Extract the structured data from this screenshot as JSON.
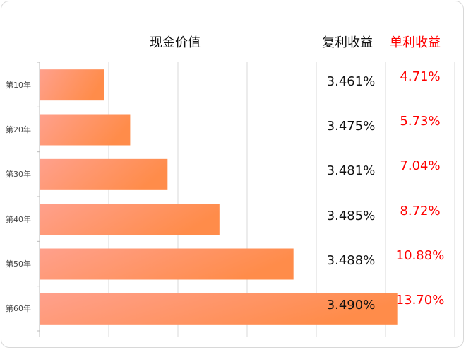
{
  "headers": {
    "cash_value": "现金价值",
    "compound": "复利收益",
    "simple": "单利收益"
  },
  "colors": {
    "bar_start": "#ffa08c",
    "bar_end": "#ff8c4a",
    "simple_text": "#ff0000",
    "compound_text": "#111111",
    "grid": "#d9d9d9"
  },
  "chart_data": {
    "type": "bar",
    "orientation": "horizontal",
    "categories": [
      "第10年",
      "第20年",
      "第30年",
      "第40年",
      "第50年",
      "第60年"
    ],
    "values": [
      0.92,
      1.3,
      1.84,
      2.59,
      3.66,
      5.16
    ],
    "xlim": [
      0,
      6
    ],
    "grid": true,
    "title": "现金价值",
    "compound_returns": [
      "3.461%",
      "3.475%",
      "3.481%",
      "3.485%",
      "3.488%",
      "3.490%"
    ],
    "simple_returns": [
      "4.71%",
      "5.73%",
      "7.04%",
      "8.72%",
      "10.88%",
      "13.70%"
    ]
  }
}
